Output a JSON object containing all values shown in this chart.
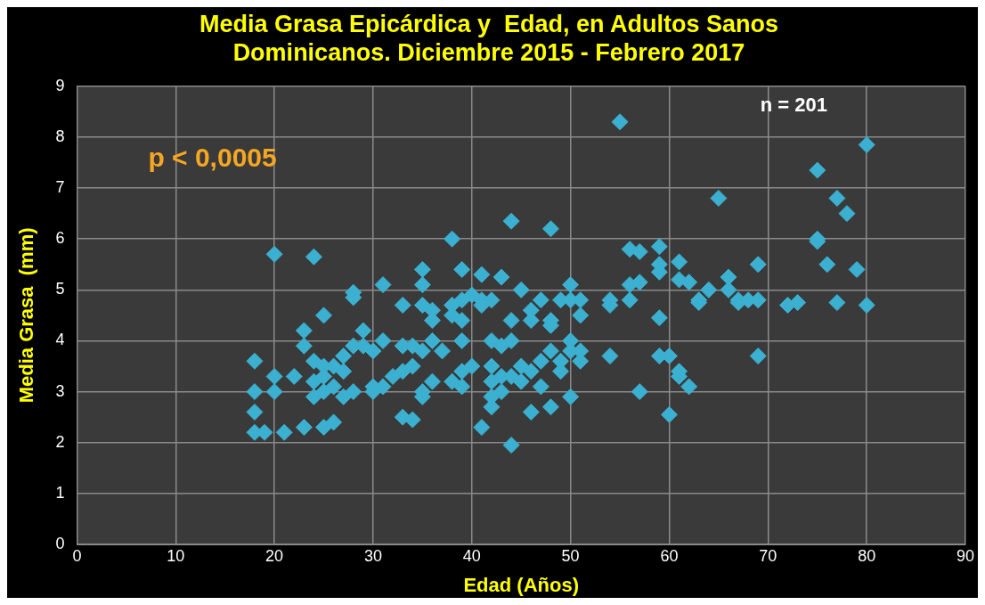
{
  "chart_data": {
    "type": "scatter",
    "title": [
      "Media Grasa Epicárdica y  Edad, en Adultos Sanos",
      "Dominicanos. Diciembre 2015 - Febrero 2017"
    ],
    "xlabel": "Edad (Años)",
    "ylabel": "Media Grasa  (mm)",
    "annotations": [
      "p < 0,0005",
      "n = 201"
    ],
    "xlim": [
      0,
      90
    ],
    "xticks": [
      0,
      10,
      20,
      30,
      40,
      50,
      60,
      70,
      80,
      90
    ],
    "ylim": [
      0,
      9
    ],
    "yticks": [
      0,
      1,
      2,
      3,
      4,
      5,
      6,
      7,
      8,
      9
    ],
    "grid": true,
    "legend": false,
    "marker": "diamond",
    "series": [
      {
        "color": "#3bb0d0",
        "x": [
          18,
          18,
          18,
          18,
          19,
          20,
          20,
          20,
          21,
          22,
          23,
          23,
          23,
          24,
          24,
          24,
          24,
          25,
          25,
          25,
          25,
          25,
          26,
          26,
          26,
          27,
          27,
          27,
          28,
          28,
          28,
          28,
          29,
          29,
          30,
          30,
          30,
          31,
          31,
          31,
          32,
          33,
          33,
          33,
          33,
          34,
          34,
          34,
          35,
          35,
          35,
          35,
          35,
          35,
          36,
          36,
          36,
          36,
          37,
          38,
          38,
          38,
          38,
          39,
          39,
          39,
          39,
          39,
          39,
          40,
          40,
          41,
          41,
          41,
          41,
          42,
          42,
          42,
          42,
          42,
          42,
          43,
          43,
          43,
          43,
          44,
          44,
          44,
          44,
          44,
          45,
          45,
          45,
          46,
          46,
          46,
          46,
          47,
          47,
          47,
          48,
          48,
          48,
          48,
          48,
          49,
          49,
          49,
          50,
          50,
          50,
          50,
          50,
          51,
          51,
          51,
          51,
          54,
          54,
          54,
          55,
          56,
          56,
          56,
          57,
          57,
          57,
          59,
          59,
          59,
          59,
          59,
          60,
          60,
          61,
          61,
          61,
          61,
          62,
          62,
          63,
          63,
          64,
          65,
          66,
          66,
          67,
          67,
          68,
          69,
          69,
          69,
          72,
          73,
          75,
          75,
          75,
          76,
          77,
          77,
          78,
          79,
          80,
          80
        ],
        "values": [
          3.6,
          3.0,
          2.6,
          2.2,
          2.2,
          5.7,
          3.3,
          3.0,
          2.2,
          3.3,
          4.2,
          3.9,
          2.3,
          5.65,
          3.6,
          3.2,
          2.9,
          4.5,
          3.5,
          3.3,
          3.0,
          2.3,
          3.5,
          3.1,
          2.4,
          3.7,
          3.4,
          2.9,
          4.95,
          4.85,
          3.9,
          3.0,
          4.2,
          3.9,
          3.8,
          3.1,
          3.0,
          5.1,
          4.0,
          3.1,
          3.3,
          4.7,
          3.9,
          3.4,
          2.5,
          3.9,
          3.5,
          2.45,
          5.4,
          5.1,
          4.7,
          3.8,
          3.0,
          2.9,
          4.6,
          4.4,
          4.0,
          3.2,
          3.8,
          6.0,
          4.7,
          4.5,
          3.2,
          5.4,
          4.8,
          4.4,
          4.0,
          3.4,
          3.1,
          4.9,
          3.5,
          5.3,
          4.8,
          4.7,
          2.3,
          4.8,
          4.0,
          3.5,
          3.2,
          2.9,
          2.7,
          5.25,
          3.9,
          3.3,
          3.0,
          6.35,
          4.4,
          4.0,
          3.3,
          1.95,
          5.0,
          3.5,
          3.2,
          4.6,
          4.4,
          3.4,
          2.6,
          4.8,
          3.6,
          3.1,
          6.2,
          4.4,
          4.3,
          3.8,
          2.7,
          4.8,
          3.6,
          3.4,
          5.1,
          4.8,
          4.0,
          3.8,
          2.9,
          4.8,
          4.5,
          3.8,
          3.6,
          4.8,
          4.7,
          3.7,
          8.3,
          5.8,
          5.1,
          4.8,
          5.75,
          5.15,
          3.0,
          5.85,
          5.5,
          5.35,
          4.45,
          3.7,
          3.7,
          2.55,
          5.55,
          5.2,
          3.4,
          3.3,
          5.15,
          3.1,
          4.8,
          4.75,
          5.0,
          6.8,
          5.25,
          5.0,
          4.8,
          4.75,
          4.8,
          5.5,
          4.8,
          3.7,
          4.7,
          4.75,
          7.35,
          6.0,
          5.95,
          5.5,
          6.8,
          4.75,
          6.5,
          5.4,
          7.85,
          4.7
        ]
      }
    ]
  }
}
